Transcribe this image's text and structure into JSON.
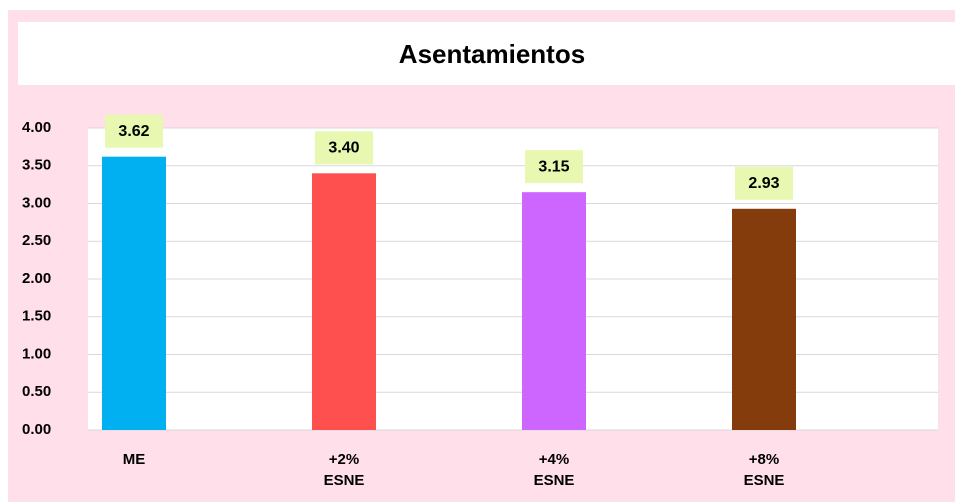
{
  "chart_data": {
    "type": "bar",
    "title": "Asentamientos",
    "categories": [
      "ME",
      "+2% ESNE",
      "+4% ESNE",
      "+8% ESNE"
    ],
    "values": [
      3.62,
      3.4,
      3.15,
      2.93
    ],
    "value_labels": [
      "3.62",
      "3.40",
      "3.15",
      "2.93"
    ],
    "colors": [
      "#00b0f0",
      "#ff5050",
      "#cc66ff",
      "#843c0c"
    ],
    "ylim": [
      0,
      4
    ],
    "yticks": [
      {
        "value": 0,
        "label": "0.00"
      },
      {
        "value": 0.5,
        "label": "0.50"
      },
      {
        "value": 1,
        "label": "1.00"
      },
      {
        "value": 1.5,
        "label": "1.50"
      },
      {
        "value": 2,
        "label": "2.00"
      },
      {
        "value": 2.5,
        "label": "2.50"
      },
      {
        "value": 3,
        "label": "3.00"
      },
      {
        "value": 3.5,
        "label": "3.50"
      },
      {
        "value": 4,
        "label": "4.00"
      }
    ],
    "grid": true
  }
}
